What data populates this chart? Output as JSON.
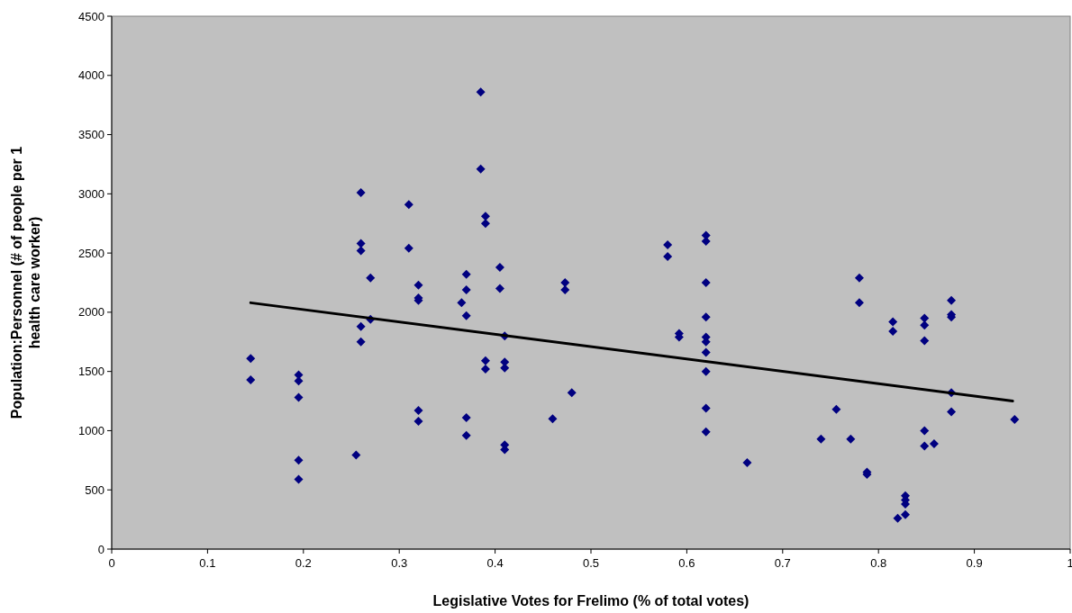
{
  "chart_data": {
    "type": "scatter",
    "xlabel": "Legislative Votes for Frelimo (% of total votes)",
    "ylabel": "Population:Personnel (# of people per 1 health care worker)",
    "xlim": [
      0,
      1
    ],
    "xticks": [
      0,
      0.1,
      0.2,
      0.3,
      0.4,
      0.5,
      0.6,
      0.7,
      0.8,
      0.9,
      1
    ],
    "ylim": [
      0,
      4500
    ],
    "yticks": [
      0,
      500,
      1000,
      1500,
      2000,
      2500,
      3000,
      3500,
      4000,
      4500
    ],
    "grid": false,
    "series": [
      {
        "marker": "diamond",
        "color": "#000080",
        "x": [
          0.145,
          0.145,
          0.195,
          0.195,
          0.195,
          0.195,
          0.195,
          0.255,
          0.26,
          0.26,
          0.26,
          0.26,
          0.26,
          0.27,
          0.27,
          0.31,
          0.31,
          0.32,
          0.32,
          0.32,
          0.32,
          0.32,
          0.365,
          0.37,
          0.37,
          0.37,
          0.37,
          0.37,
          0.385,
          0.385,
          0.39,
          0.39,
          0.39,
          0.39,
          0.405,
          0.405,
          0.41,
          0.41,
          0.41,
          0.41,
          0.41,
          0.46,
          0.48,
          0.473,
          0.473,
          0.58,
          0.58,
          0.592,
          0.592,
          0.62,
          0.62,
          0.62,
          0.62,
          0.62,
          0.62,
          0.62,
          0.62,
          0.62,
          0.62,
          0.663,
          0.74,
          0.756,
          0.771,
          0.78,
          0.78,
          0.788,
          0.788,
          0.815,
          0.815,
          0.82,
          0.828,
          0.828,
          0.828,
          0.828,
          0.848,
          0.848,
          0.848,
          0.848,
          0.848,
          0.858,
          0.876,
          0.876,
          0.876,
          0.876,
          0.876,
          0.942
        ],
        "values": [
          1610,
          1430,
          1470,
          1420,
          1280,
          750,
          590,
          795,
          3010,
          2580,
          2520,
          1880,
          1750,
          2290,
          1940,
          2910,
          2540,
          2230,
          2120,
          2100,
          1170,
          1080,
          2080,
          2320,
          2190,
          1970,
          1110,
          960,
          3860,
          3210,
          2810,
          2750,
          1590,
          1520,
          2380,
          2200,
          1800,
          1580,
          1530,
          880,
          840,
          1100,
          1320,
          2250,
          2190,
          2570,
          2470,
          1820,
          1790,
          2650,
          2600,
          2250,
          1960,
          1790,
          1750,
          1660,
          1500,
          1190,
          990,
          730,
          930,
          1180,
          930,
          2290,
          2080,
          650,
          630,
          1920,
          1840,
          260,
          450,
          415,
          380,
          290,
          1950,
          1890,
          1760,
          1000,
          870,
          890,
          2100,
          1980,
          1960,
          1320,
          1160,
          1095
        ]
      },
      {
        "type": "line",
        "color": "#000000",
        "line_style": "solid",
        "x": [
          0.145,
          0.94
        ],
        "values": [
          2080,
          1250
        ]
      }
    ]
  }
}
